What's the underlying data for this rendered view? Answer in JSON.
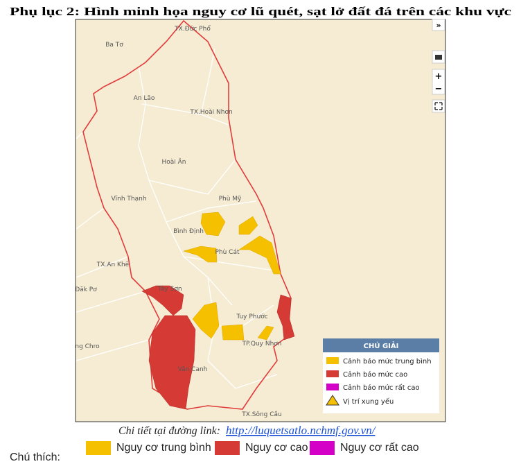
{
  "header": {
    "title": "Phụ lục 2: Hình minh họa nguy cơ lũ quét, sạt lở đất đá trên các khu vực"
  },
  "map": {
    "labels": [
      "TX.Đức Phổ",
      "Ba Tơ",
      "An Lão",
      "TX.Hoài Nhơn",
      "Hoài Ân",
      "Vĩnh Thạnh",
      "Phù Mỹ",
      "Bình Định",
      "Phù Cát",
      "TX.An Khê",
      "Đăk Pơ",
      "Tây Sơn",
      "Tuy Phước",
      "TP.Quy Nhơn",
      "ng Chro",
      "Vân Canh",
      "TX.Sông Cầu"
    ],
    "controls": [
      "»",
      "+",
      "−"
    ],
    "legend": {
      "title": "CHÚ GIẢI",
      "items": [
        "Cảnh báo mức trung bình",
        "Cảnh báo mức cao",
        "Cảnh báo mức rất cao",
        "Vị trí xung yếu"
      ]
    }
  },
  "caption": {
    "text": "Chi tiết tại đường link:",
    "link": "http://luquetsatlo.nchmf.gov.vn/"
  },
  "footer": {
    "label": "Chú thích:",
    "items": [
      "Nguy cơ trung bình",
      "Nguy cơ cao",
      "Nguy cơ rất cao"
    ]
  }
}
